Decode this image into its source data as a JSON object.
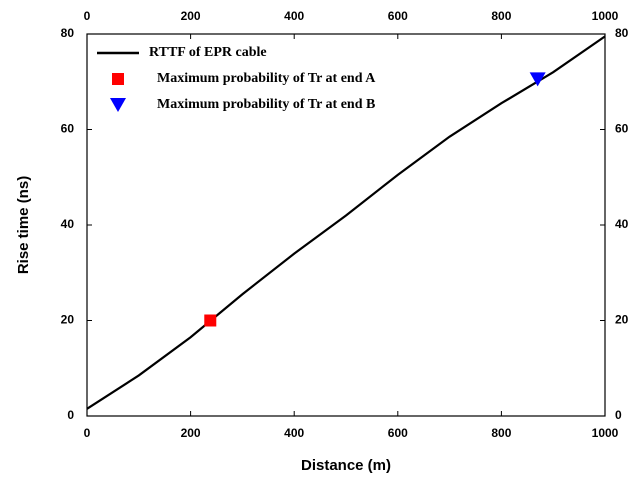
{
  "chart_data": {
    "type": "line",
    "xlabel": "Distance (m)",
    "ylabel": "Rise time (ns)",
    "xlim": [
      0,
      1000
    ],
    "xticks": [
      0,
      200,
      400,
      600,
      800,
      1000
    ],
    "ylim": [
      0,
      80
    ],
    "yticks": [
      0,
      20,
      40,
      60,
      80
    ],
    "legend": "upper left",
    "series": [
      {
        "name": "RTTF of EPR cable",
        "color": "#000000",
        "marker": "none",
        "x": [
          0,
          100,
          200,
          300,
          400,
          500,
          600,
          700,
          800,
          900,
          1000
        ],
        "values": [
          1.5,
          8.5,
          16.5,
          25.5,
          34,
          42,
          50.5,
          58.5,
          65.5,
          72,
          79.5
        ]
      },
      {
        "name": "Maximum probability of Tr at end A",
        "color": "#ff0000",
        "marker": "square",
        "x": [
          238
        ],
        "values": [
          20
        ]
      },
      {
        "name": "Maximum probability of Tr at end B",
        "color": "#0000ff",
        "marker": "triangle-down",
        "x": [
          870
        ],
        "values": [
          70.5
        ]
      }
    ]
  }
}
